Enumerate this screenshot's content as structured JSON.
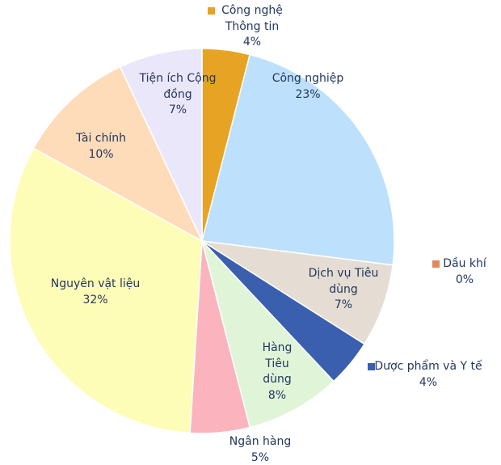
{
  "chart_data": {
    "type": "pie",
    "categories": [
      "Công nghệ Thông tin",
      "Công nghiệp",
      "Dầu khí",
      "Dịch vụ Tiêu dùng",
      "Dược phẩm và Y tế",
      "Hàng Tiêu dùng",
      "Ngân hàng",
      "Nguyên vật liệu",
      "Tài chính",
      "Tiện ích Cộng đồng"
    ],
    "values": [
      4,
      23,
      0,
      7,
      4,
      8,
      5,
      32,
      10,
      7
    ],
    "value_labels": [
      "4%",
      "23%",
      "0%",
      "7%",
      "4%",
      "8%",
      "5%",
      "32%",
      "10%",
      "7%"
    ],
    "colors": [
      "#e6a324",
      "#bde0fc",
      "#e08a5e",
      "#e5ddd3",
      "#3a5fae",
      "#e0f5d8",
      "#fbb4bd",
      "#fefdb7",
      "#fedcb9",
      "#ebe7fb"
    ]
  }
}
